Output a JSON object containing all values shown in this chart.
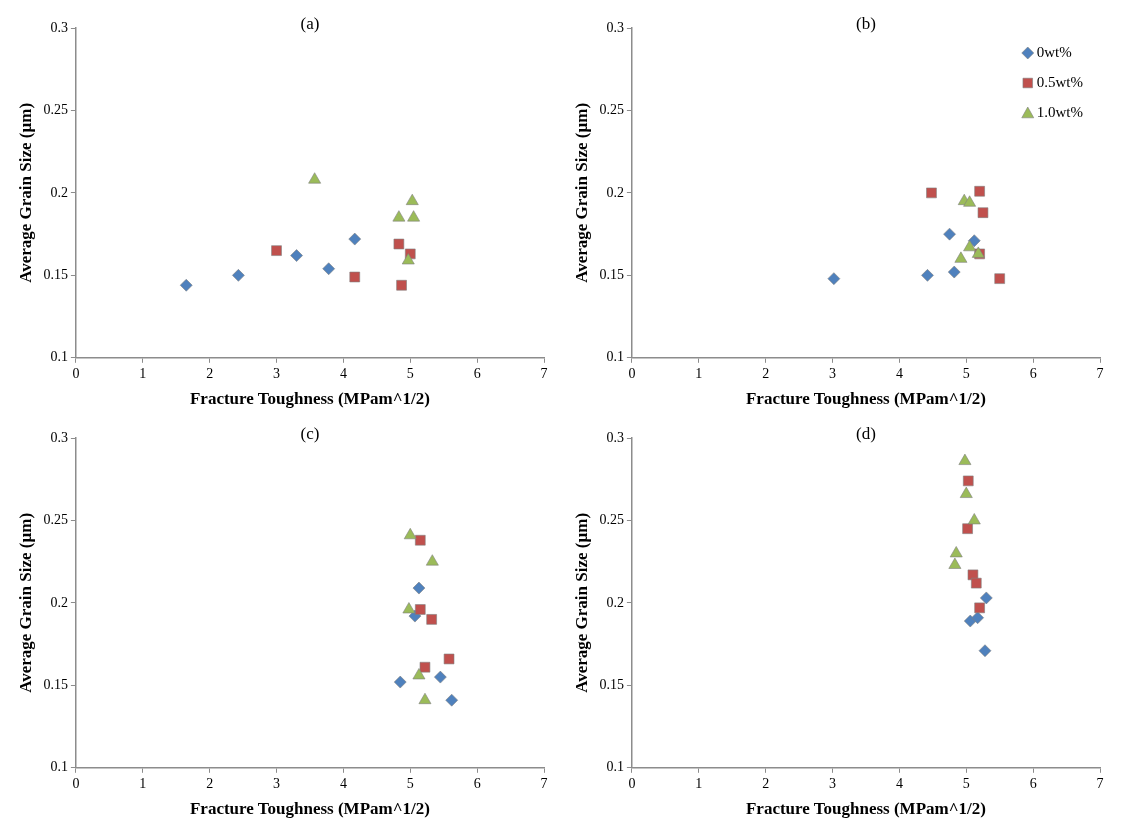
{
  "chart_data": [
    {
      "type": "scatter",
      "title": "(a)",
      "xlabel": "Fracture Toughness (MPam^1/2)",
      "ylabel": "Average Grain Size (µm)",
      "xlim": [
        0,
        7
      ],
      "xticks": [
        0,
        1,
        2,
        3,
        4,
        5,
        6,
        7
      ],
      "ylim": [
        0.1,
        0.3
      ],
      "yticks": [
        0.1,
        0.15,
        0.2,
        0.25,
        0.3
      ],
      "series": [
        {
          "color": "#4f81bd",
          "marker": "diamond",
          "x": [
            1.65,
            2.43,
            3.3,
            3.78,
            4.17
          ],
          "values": [
            0.144,
            0.15,
            0.162,
            0.154,
            0.172
          ]
        },
        {
          "color": "#c0504d",
          "marker": "square",
          "x": [
            3.0,
            4.17,
            4.83,
            5.0,
            4.87
          ],
          "values": [
            0.165,
            0.149,
            0.169,
            0.163,
            0.144
          ]
        },
        {
          "color": "#9bbb59",
          "marker": "triangle",
          "x": [
            3.57,
            4.83,
            5.05,
            5.03,
            4.97
          ],
          "values": [
            0.208,
            0.185,
            0.185,
            0.195,
            0.159
          ]
        }
      ]
    },
    {
      "type": "scatter",
      "title": "(b)",
      "xlabel": "Fracture Toughness (MPam^1/2)",
      "ylabel": "Average Grain Size (µm)",
      "xlim": [
        0,
        7
      ],
      "xticks": [
        0,
        1,
        2,
        3,
        4,
        5,
        6,
        7
      ],
      "ylim": [
        0.1,
        0.3
      ],
      "yticks": [
        0.1,
        0.15,
        0.2,
        0.25,
        0.3
      ],
      "legend": "top right",
      "series": [
        {
          "name": "0wt%",
          "color": "#4f81bd",
          "marker": "diamond",
          "x": [
            3.02,
            4.42,
            4.75,
            4.82,
            5.12
          ],
          "values": [
            0.148,
            0.15,
            0.175,
            0.152,
            0.171
          ]
        },
        {
          "name": "0.5wt%",
          "color": "#c0504d",
          "marker": "square",
          "x": [
            4.48,
            5.2,
            5.25,
            5.2,
            5.5
          ],
          "values": [
            0.2,
            0.201,
            0.188,
            0.163,
            0.148
          ]
        },
        {
          "name": "1.0wt%",
          "color": "#9bbb59",
          "marker": "triangle",
          "x": [
            4.97,
            5.05,
            5.05,
            4.92,
            5.18
          ],
          "values": [
            0.195,
            0.194,
            0.167,
            0.16,
            0.163
          ]
        }
      ]
    },
    {
      "type": "scatter",
      "title": "(c)",
      "xlabel": "Fracture Toughness (MPam^1/2)",
      "ylabel": "Average Grain Size (µm)",
      "xlim": [
        0,
        7
      ],
      "xticks": [
        0,
        1,
        2,
        3,
        4,
        5,
        6,
        7
      ],
      "ylim": [
        0.1,
        0.3
      ],
      "yticks": [
        0.1,
        0.15,
        0.2,
        0.25,
        0.3
      ],
      "series": [
        {
          "color": "#4f81bd",
          "marker": "diamond",
          "x": [
            4.85,
            5.07,
            5.13,
            5.45,
            5.62
          ],
          "values": [
            0.152,
            0.192,
            0.209,
            0.155,
            0.141
          ]
        },
        {
          "color": "#c0504d",
          "marker": "square",
          "x": [
            5.15,
            5.15,
            5.32,
            5.22,
            5.58
          ],
          "values": [
            0.238,
            0.196,
            0.19,
            0.161,
            0.166
          ]
        },
        {
          "color": "#9bbb59",
          "marker": "triangle",
          "x": [
            5.0,
            5.33,
            4.98,
            5.13,
            5.22
          ],
          "values": [
            0.241,
            0.225,
            0.196,
            0.156,
            0.141
          ]
        }
      ]
    },
    {
      "type": "scatter",
      "title": "(d)",
      "xlabel": "Fracture Toughness (MPam^1/2)",
      "ylabel": "Average Grain Size (µm)",
      "xlim": [
        0,
        7
      ],
      "xticks": [
        0,
        1,
        2,
        3,
        4,
        5,
        6,
        7
      ],
      "ylim": [
        0.1,
        0.3
      ],
      "yticks": [
        0.1,
        0.15,
        0.2,
        0.25,
        0.3
      ],
      "series": [
        {
          "color": "#4f81bd",
          "marker": "diamond",
          "x": [
            5.3,
            5.06,
            5.17,
            5.28
          ],
          "values": [
            0.203,
            0.189,
            0.191,
            0.171
          ]
        },
        {
          "color": "#c0504d",
          "marker": "square",
          "x": [
            5.03,
            5.02,
            5.1,
            5.15,
            5.2
          ],
          "values": [
            0.274,
            0.245,
            0.217,
            0.212,
            0.197
          ]
        },
        {
          "color": "#9bbb59",
          "marker": "triangle",
          "x": [
            4.98,
            5.0,
            5.12,
            4.85,
            4.83
          ],
          "values": [
            0.286,
            0.266,
            0.25,
            0.23,
            0.223
          ]
        }
      ]
    }
  ]
}
